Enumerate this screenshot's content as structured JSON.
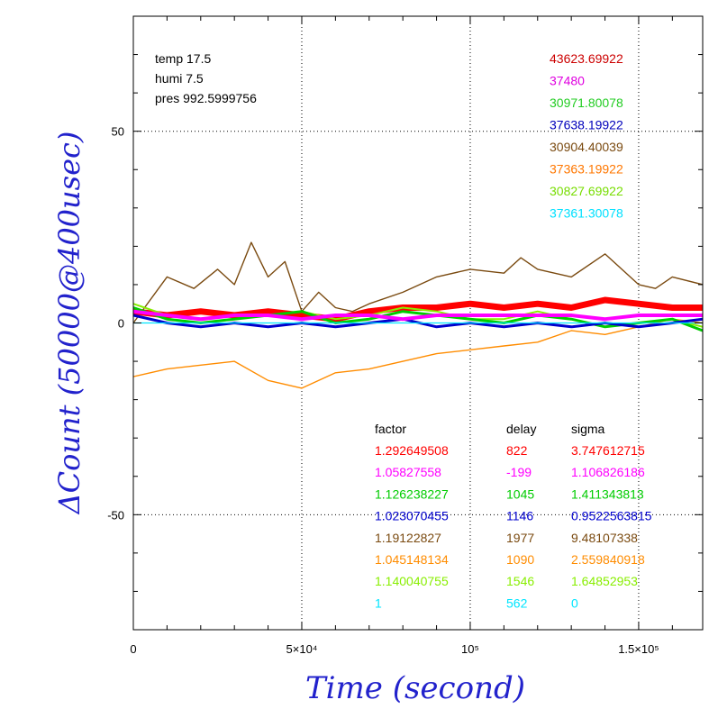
{
  "chart_data": {
    "type": "line",
    "title": "",
    "xlabel": "Time (second)",
    "ylabel": "ΔCount (50000@400usec)",
    "xlim": [
      0,
      169000
    ],
    "ylim": [
      -80,
      80
    ],
    "grid": true,
    "grid_style": "dotted",
    "x_ticks": [
      {
        "value": 0,
        "label": "0"
      },
      {
        "value": 50000,
        "label": "5×10⁴"
      },
      {
        "value": 100000,
        "label": "10⁵"
      },
      {
        "value": 150000,
        "label": "1.5×10⁵"
      }
    ],
    "y_ticks": [
      {
        "value": -50,
        "label": "-50"
      },
      {
        "value": 0,
        "label": "0"
      },
      {
        "value": 50,
        "label": "50"
      }
    ],
    "environment": [
      {
        "text": "temp 17.5",
        "color": "#aa0000"
      },
      {
        "text": "humi 7.5",
        "color": "#008800"
      },
      {
        "text": "pres 992.5999756",
        "color": "#000088"
      }
    ],
    "mean_values": [
      {
        "text": "43623.69922",
        "color": "#cc0000"
      },
      {
        "text": "37480",
        "color": "#e000e0"
      },
      {
        "text": "30971.80078",
        "color": "#22cc22"
      },
      {
        "text": "37638.19922",
        "color": "#0000bb"
      },
      {
        "text": "30904.40039",
        "color": "#7a4a10"
      },
      {
        "text": "37363.19922",
        "color": "#ff7700"
      },
      {
        "text": "30827.69922",
        "color": "#77dd00"
      },
      {
        "text": "37361.30078",
        "color": "#00e0ff"
      }
    ],
    "stats_headers": [
      "factor",
      "delay",
      "sigma"
    ],
    "series": [
      {
        "color": "#ff0000",
        "factor": "1.292649508",
        "delay": "822",
        "sigma": "3.747612715",
        "x": [
          0,
          10000,
          20000,
          30000,
          40000,
          50000,
          60000,
          70000,
          80000,
          90000,
          100000,
          110000,
          120000,
          130000,
          140000,
          150000,
          160000,
          169000
        ],
        "y": [
          3,
          2,
          3,
          2,
          3,
          2,
          1,
          3,
          4,
          4,
          5,
          4,
          5,
          4,
          6,
          5,
          4,
          4
        ]
      },
      {
        "color": "#ff00ff",
        "factor": "1.05827558",
        "delay": "-199",
        "sigma": "1.106826186",
        "x": [
          0,
          10000,
          20000,
          30000,
          40000,
          50000,
          60000,
          70000,
          80000,
          90000,
          100000,
          110000,
          120000,
          130000,
          140000,
          150000,
          160000,
          169000
        ],
        "y": [
          3,
          2,
          1,
          2,
          2,
          1,
          2,
          2,
          1,
          2,
          2,
          2,
          2,
          2,
          1,
          2,
          2,
          2
        ]
      },
      {
        "color": "#00cc00",
        "factor": "1.126238227",
        "delay": "1045",
        "sigma": "1.411343813",
        "x": [
          0,
          10000,
          20000,
          30000,
          40000,
          50000,
          60000,
          70000,
          80000,
          90000,
          100000,
          110000,
          120000,
          130000,
          140000,
          150000,
          160000,
          169000
        ],
        "y": [
          4,
          1,
          0,
          1,
          2,
          3,
          0,
          1,
          3,
          2,
          1,
          0,
          2,
          1,
          -1,
          0,
          1,
          -2
        ]
      },
      {
        "color": "#0000cc",
        "factor": "1.023070455",
        "delay": "1146",
        "sigma": "0.9522563815",
        "x": [
          0,
          10000,
          20000,
          30000,
          40000,
          50000,
          60000,
          70000,
          80000,
          90000,
          100000,
          110000,
          120000,
          130000,
          140000,
          150000,
          160000,
          169000
        ],
        "y": [
          2,
          0,
          -1,
          0,
          -1,
          0,
          -1,
          0,
          1,
          -1,
          0,
          -1,
          0,
          -1,
          0,
          -1,
          0,
          1
        ]
      },
      {
        "color": "#7a4a10",
        "factor": "1.19122827",
        "delay": "1977",
        "sigma": "9.48107338",
        "x": [
          0,
          10000,
          18000,
          25000,
          30000,
          35000,
          40000,
          45000,
          50000,
          55000,
          60000,
          65000,
          70000,
          80000,
          90000,
          100000,
          110000,
          115000,
          120000,
          130000,
          140000,
          150000,
          155000,
          160000,
          169000
        ],
        "y": [
          0,
          12,
          9,
          14,
          10,
          21,
          12,
          16,
          3,
          8,
          4,
          3,
          5,
          8,
          12,
          14,
          13,
          17,
          14,
          12,
          18,
          10,
          9,
          12,
          10
        ]
      },
      {
        "color": "#ff8c00",
        "factor": "1.045148134",
        "delay": "1090",
        "sigma": "2.559840918",
        "x": [
          0,
          10000,
          20000,
          30000,
          40000,
          50000,
          60000,
          70000,
          80000,
          90000,
          100000,
          110000,
          120000,
          130000,
          140000,
          150000,
          160000,
          169000
        ],
        "y": [
          -14,
          -12,
          -11,
          -10,
          -15,
          -17,
          -13,
          -12,
          -10,
          -8,
          -7,
          -6,
          -5,
          -2,
          -3,
          -1,
          1,
          0
        ]
      },
      {
        "color": "#88ee00",
        "factor": "1.140040755",
        "delay": "1546",
        "sigma": "1.64852953",
        "x": [
          0,
          10000,
          20000,
          30000,
          40000,
          50000,
          60000,
          70000,
          80000,
          90000,
          100000,
          110000,
          120000,
          130000,
          140000,
          150000,
          160000,
          169000
        ],
        "y": [
          5,
          2,
          1,
          2,
          2,
          3,
          1,
          2,
          4,
          3,
          1,
          1,
          3,
          1,
          -1,
          0,
          1,
          -1
        ]
      },
      {
        "color": "#00e5ff",
        "factor": "1",
        "delay": "562",
        "sigma": "0",
        "x": [
          0,
          169000
        ],
        "y": [
          0,
          0
        ]
      }
    ]
  }
}
